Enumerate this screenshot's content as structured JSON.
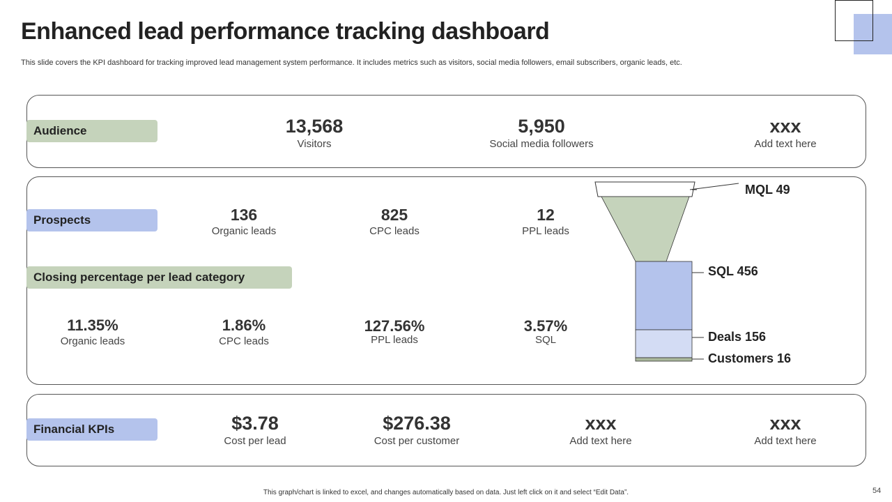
{
  "header": {
    "title": "Enhanced lead performance tracking dashboard",
    "subtitle": "This slide covers the KPI dashboard for tracking improved lead management system performance. It includes metrics such as visitors, social media followers, email subscribers, organic leads, etc."
  },
  "audience": {
    "label": "Audience",
    "metrics": [
      {
        "value": "13,568",
        "label": "Visitors"
      },
      {
        "value": "5,950",
        "label": "Social media followers"
      },
      {
        "value": "xxx",
        "label": "Add text here"
      }
    ]
  },
  "prospects": {
    "label": "Prospects",
    "metrics": [
      {
        "value": "136",
        "label": "Organic leads"
      },
      {
        "value": "825",
        "label": "CPC leads"
      },
      {
        "value": "12",
        "label": "PPL leads"
      }
    ]
  },
  "closing": {
    "label": "Closing percentage per lead category",
    "metrics": [
      {
        "value": "11.35%",
        "label": "Organic leads"
      },
      {
        "value": "1.86%",
        "label": "CPC leads"
      },
      {
        "value": "127.56%",
        "label": "PPL leads"
      },
      {
        "value": "3.57%",
        "label": "SQL"
      }
    ]
  },
  "financial": {
    "label": "Financial KPIs",
    "metrics": [
      {
        "value": "$3.78",
        "label": "Cost per lead"
      },
      {
        "value": "$276.38",
        "label": "Cost per customer"
      },
      {
        "value": "xxx",
        "label": "Add text here"
      },
      {
        "value": "xxx",
        "label": "Add text here"
      }
    ]
  },
  "funnel": {
    "stages": [
      {
        "label": "MQL 49"
      },
      {
        "label": "SQL 456"
      },
      {
        "label": "Deals 156"
      },
      {
        "label": "Customers 16"
      }
    ],
    "colors": {
      "mql": "#c5d3bb",
      "sql": "#b4c3ec",
      "deals": "#d3dcf4",
      "customers": "#a9b89c"
    }
  },
  "footer": {
    "note": "This graph/chart is linked to excel, and changes automatically based on data. Just left click on it and select “Edit Data”.",
    "page_number": "54"
  }
}
